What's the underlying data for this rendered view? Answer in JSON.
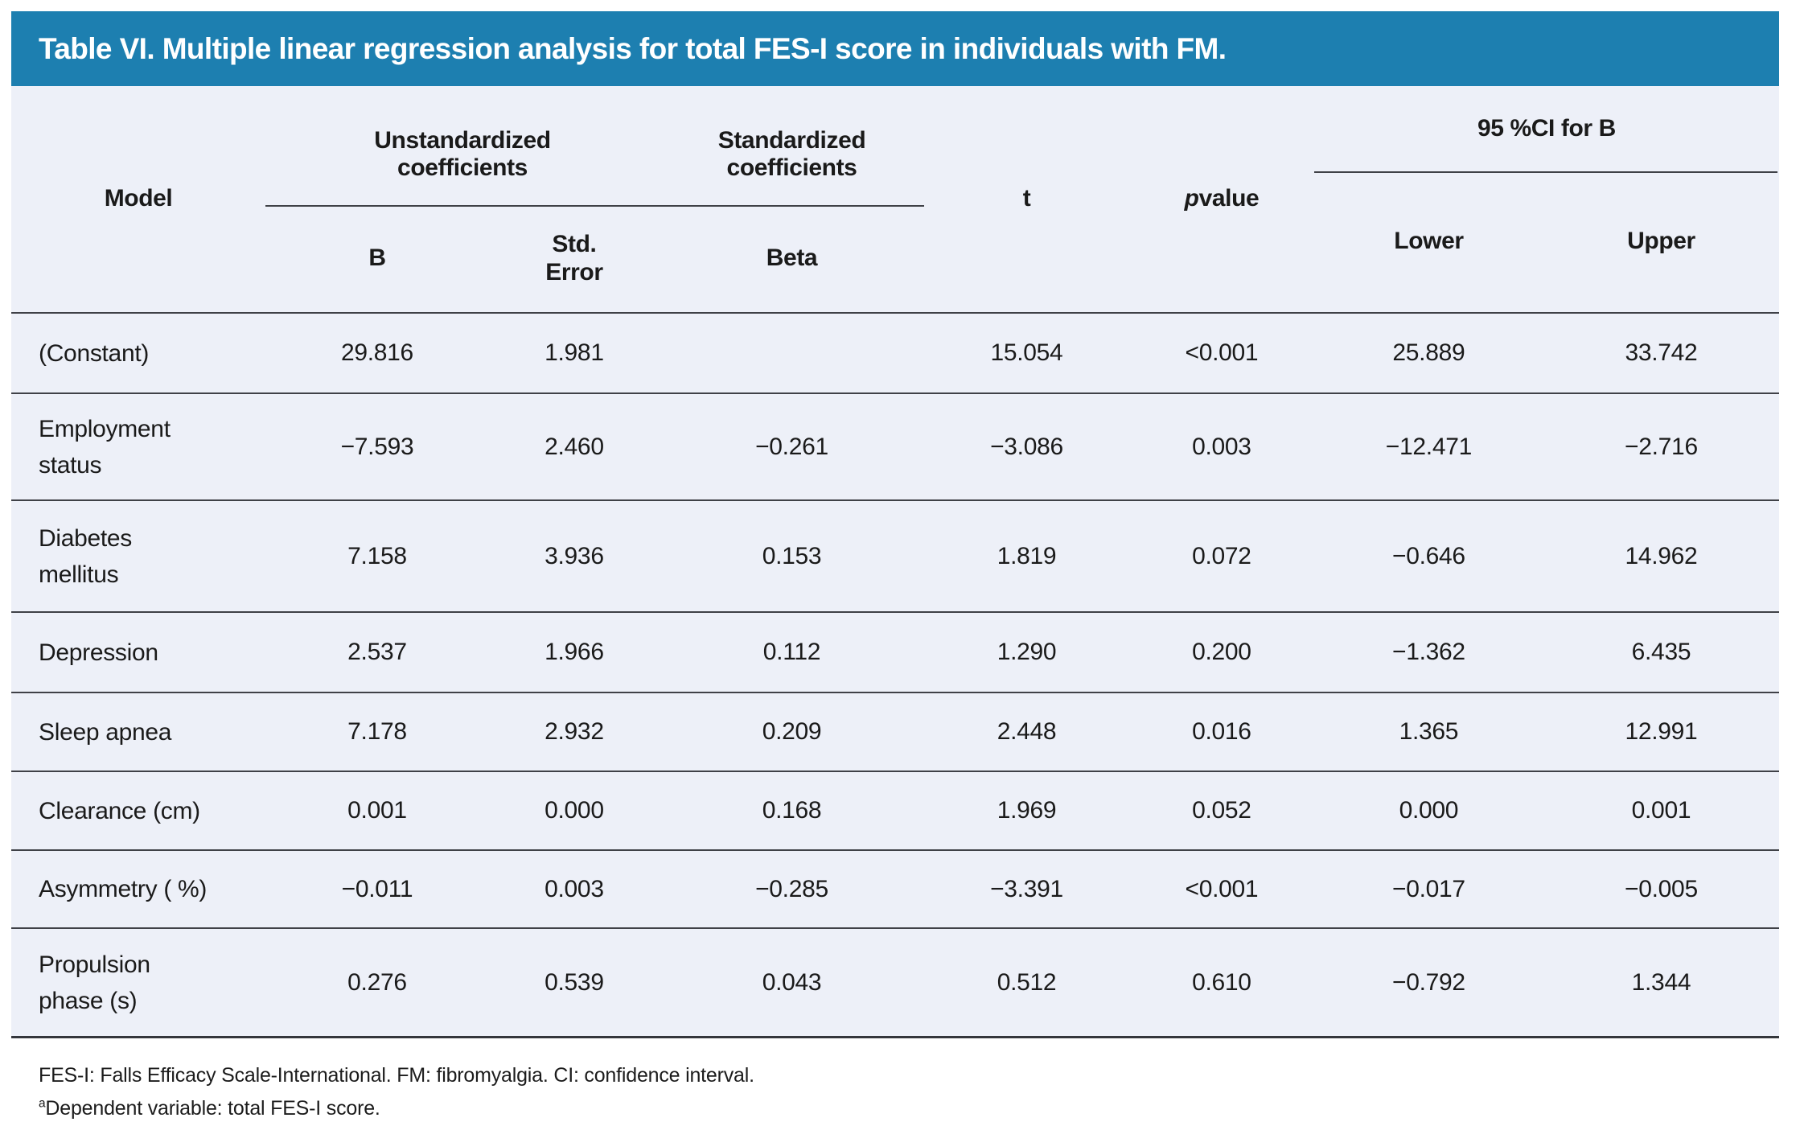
{
  "page": {
    "title_bar": "Table VI. Multiple linear regression analysis for total FES-I score in individuals with FM."
  },
  "header": {
    "model": "Model",
    "group_unstandardized": "Unstandardized\ncoefficients",
    "group_standardized": "Standardized\ncoefficients",
    "group_ci": "95 %CI for B",
    "t": "t",
    "p_italic": "p",
    "p_rest": " value",
    "sub_b": "B",
    "sub_std_error": "Std.\nError",
    "sub_beta": "Beta",
    "sub_lower": "Lower",
    "sub_upper": "Upper"
  },
  "rows": [
    {
      "model": "(Constant)",
      "b": "29.816",
      "std_error": "1.981",
      "beta": "",
      "t": "15.054",
      "p": "<0.001",
      "lower": "25.889",
      "upper": "33.742"
    },
    {
      "model": "Employment\nstatus",
      "b": "−7.593",
      "std_error": "2.460",
      "beta": "−0.261",
      "t": "−3.086",
      "p": "0.003",
      "lower": "−12.471",
      "upper": "−2.716"
    },
    {
      "model": "Diabetes\nmellitus",
      "b": "7.158",
      "std_error": "3.936",
      "beta": "0.153",
      "t": "1.819",
      "p": "0.072",
      "lower": "−0.646",
      "upper": "14.962"
    },
    {
      "model": "Depression",
      "b": "2.537",
      "std_error": "1.966",
      "beta": "0.112",
      "t": "1.290",
      "p": "0.200",
      "lower": "−1.362",
      "upper": "6.435"
    },
    {
      "model": "Sleep apnea",
      "b": "7.178",
      "std_error": "2.932",
      "beta": "0.209",
      "t": "2.448",
      "p": "0.016",
      "lower": "1.365",
      "upper": "12.991"
    },
    {
      "model": "Clearance (cm)",
      "b": "0.001",
      "std_error": "0.000",
      "beta": "0.168",
      "t": "1.969",
      "p": "0.052",
      "lower": "0.000",
      "upper": "0.001"
    },
    {
      "model": "Asymmetry ( %)",
      "b": "−0.011",
      "std_error": "0.003",
      "beta": "−0.285",
      "t": "−3.391",
      "p": "<0.001",
      "lower": "−0.017",
      "upper": "−0.005"
    },
    {
      "model": "Propulsion\nphase (s)",
      "b": "0.276",
      "std_error": "0.539",
      "beta": "0.043",
      "t": "0.512",
      "p": "0.610",
      "lower": "−0.792",
      "upper": "1.344"
    }
  ],
  "footnotes": {
    "abbreviations": "FES-I: Falls Efficacy Scale-International. FM: fibromyalgia. CI: confidence interval.",
    "dependent_sup": "a",
    "dependent_text": "Dependent variable: total FES-I score."
  },
  "colors": {
    "accent_blue": "#1d7fb0",
    "table_bg": "#edf0f8",
    "rule": "#3f4147",
    "text": "#1a1a1a"
  }
}
